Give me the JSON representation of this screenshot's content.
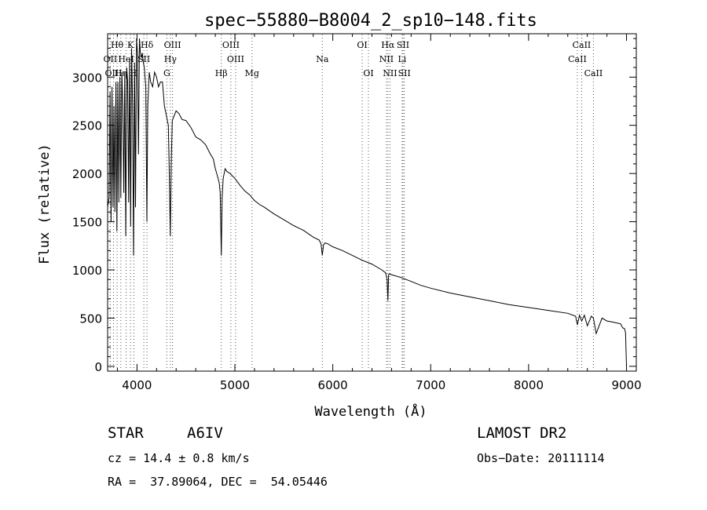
{
  "chart_data": {
    "type": "line",
    "title": "spec−55880−B8004_2_sp10−148.fits",
    "xlabel": "Wavelength (Å)",
    "ylabel": "Flux (relative)",
    "xlim": [
      3700,
      9100
    ],
    "ylim": [
      -50,
      3450
    ],
    "xticks": [
      4000,
      5000,
      6000,
      7000,
      8000,
      9000
    ],
    "yticks": [
      0,
      500,
      1000,
      1500,
      2000,
      2500,
      3000
    ],
    "xtick_labels": [
      "4000",
      "5000",
      "6000",
      "7000",
      "8000",
      "9000"
    ],
    "ytick_labels": [
      "0",
      "500",
      "1000",
      "1500",
      "2000",
      "2500",
      "3000"
    ],
    "series": [
      {
        "name": "flux",
        "x": [
          3700,
          3715,
          3725,
          3735,
          3745,
          3755,
          3765,
          3775,
          3785,
          3795,
          3805,
          3815,
          3825,
          3835,
          3845,
          3855,
          3865,
          3875,
          3885,
          3895,
          3905,
          3915,
          3925,
          3935,
          3945,
          3955,
          3965,
          3975,
          3985,
          3995,
          4005,
          4015,
          4025,
          4035,
          4045,
          4055,
          4065,
          4075,
          4090,
          4101,
          4110,
          4125,
          4140,
          4160,
          4180,
          4200,
          4220,
          4240,
          4260,
          4280,
          4300,
          4320,
          4330,
          4340,
          4350,
          4360,
          4380,
          4400,
          4430,
          4460,
          4500,
          4550,
          4600,
          4650,
          4700,
          4750,
          4780,
          4800,
          4820,
          4840,
          4850,
          4861,
          4870,
          4880,
          4900,
          4920,
          4950,
          5000,
          5050,
          5100,
          5150,
          5200,
          5250,
          5300,
          5400,
          5500,
          5600,
          5700,
          5800,
          5860,
          5880,
          5893,
          5905,
          5920,
          5950,
          6000,
          6100,
          6200,
          6300,
          6400,
          6500,
          6540,
          6555,
          6563,
          6570,
          6580,
          6600,
          6700,
          6800,
          6900,
          7000,
          7200,
          7400,
          7600,
          7800,
          8000,
          8200,
          8400,
          8480,
          8498,
          8520,
          8542,
          8570,
          8600,
          8640,
          8662,
          8690,
          8750,
          8800,
          8850,
          8900,
          8940,
          8960,
          8980,
          8990,
          9000
        ],
        "y": [
          1650,
          1750,
          2850,
          1500,
          2900,
          1650,
          2700,
          1600,
          2950,
          1400,
          2950,
          1700,
          3000,
          1750,
          3050,
          2700,
          1800,
          3050,
          1350,
          3100,
          2950,
          1700,
          3200,
          1450,
          3300,
          2700,
          1150,
          3150,
          1650,
          3400,
          3250,
          2200,
          3400,
          3250,
          3200,
          3250,
          3150,
          3100,
          2900,
          1500,
          2700,
          3050,
          2950,
          2900,
          3050,
          3000,
          2900,
          2950,
          2950,
          2700,
          2600,
          2500,
          2000,
          1350,
          2100,
          2550,
          2600,
          2650,
          2620,
          2560,
          2550,
          2480,
          2380,
          2350,
          2300,
          2200,
          2150,
          2050,
          1980,
          1900,
          1800,
          1150,
          1750,
          1950,
          2050,
          2020,
          2000,
          1950,
          1880,
          1820,
          1780,
          1720,
          1680,
          1650,
          1580,
          1520,
          1460,
          1410,
          1340,
          1310,
          1270,
          1150,
          1260,
          1280,
          1270,
          1240,
          1200,
          1150,
          1100,
          1060,
          1000,
          970,
          900,
          680,
          950,
          960,
          950,
          920,
          880,
          840,
          810,
          760,
          720,
          680,
          640,
          610,
          580,
          550,
          520,
          430,
          530,
          470,
          530,
          420,
          520,
          500,
          340,
          500,
          470,
          460,
          450,
          440,
          400,
          390,
          350,
          0
        ]
      }
    ],
    "lines": [
      {
        "label": "Hθ",
        "wl": 3797,
        "row": 0
      },
      {
        "label": "K",
        "wl": 3934,
        "row": 0
      },
      {
        "label": "Hδ",
        "wl": 4102,
        "row": 0
      },
      {
        "label": "OIII",
        "wl": 4363,
        "row": 0
      },
      {
        "label": "OIII",
        "wl": 4959,
        "row": 0
      },
      {
        "label": "OI",
        "wl": 6300,
        "row": 0
      },
      {
        "label": "Hα",
        "wl": 6563,
        "row": 0
      },
      {
        "label": "SII",
        "wl": 6717,
        "row": 0
      },
      {
        "label": "CaII",
        "wl": 8542,
        "row": 0
      },
      {
        "label": "OII",
        "wl": 3727,
        "row": 1
      },
      {
        "label": "HeI",
        "wl": 3889,
        "row": 1
      },
      {
        "label": "SII",
        "wl": 4070,
        "row": 1
      },
      {
        "label": "Hγ",
        "wl": 4341,
        "row": 1
      },
      {
        "label": "OIII",
        "wl": 5007,
        "row": 1
      },
      {
        "label": "Na",
        "wl": 5893,
        "row": 1
      },
      {
        "label": "NII",
        "wl": 6548,
        "row": 1
      },
      {
        "label": "Li",
        "wl": 6708,
        "row": 1
      },
      {
        "label": "CaII",
        "wl": 8498,
        "row": 1
      },
      {
        "label": "OIII",
        "wl": 3760,
        "row": 2
      },
      {
        "label": "Hη",
        "wl": 3835,
        "row": 2
      },
      {
        "label": "H",
        "wl": 3969,
        "row": 2
      },
      {
        "label": "G",
        "wl": 4305,
        "row": 2
      },
      {
        "label": "Hβ",
        "wl": 4861,
        "row": 2
      },
      {
        "label": "Mg",
        "wl": 5175,
        "row": 2
      },
      {
        "label": "OI",
        "wl": 6364,
        "row": 2
      },
      {
        "label": "NII",
        "wl": 6584,
        "row": 2
      },
      {
        "label": "SII",
        "wl": 6731,
        "row": 2
      },
      {
        "label": "CaII",
        "wl": 8662,
        "row": 2
      }
    ]
  },
  "info": {
    "object_class": "STAR",
    "subclass": "A6IV",
    "survey": "LAMOST DR2",
    "cz_line": "cz = 14.4 ± 0.8 km/s",
    "obs_date_line": "Obs−Date: 20111114",
    "coords_line": "RA =  37.89064, DEC =  54.05446"
  }
}
